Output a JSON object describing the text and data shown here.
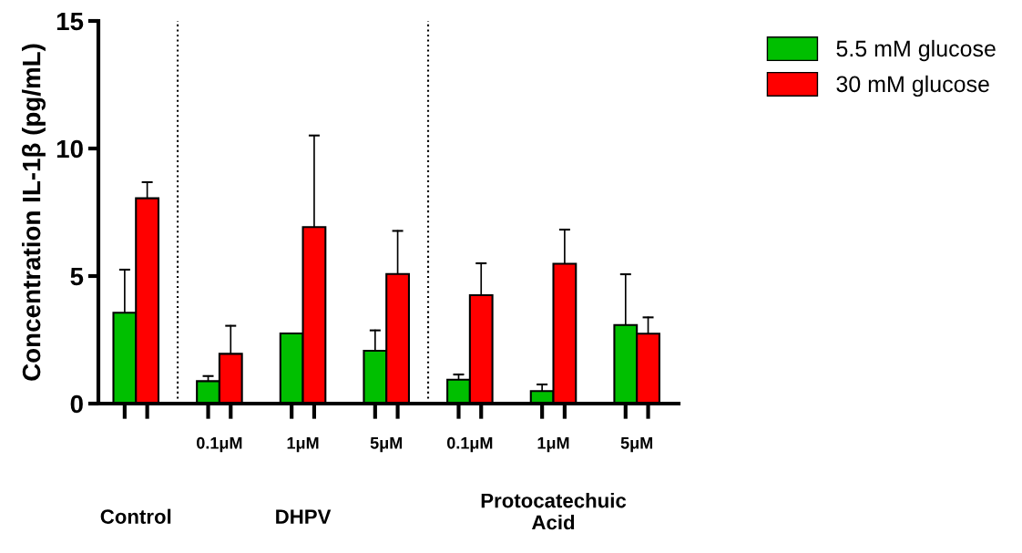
{
  "chart_data": {
    "type": "bar",
    "ylabel": "Concentration IL-1β (pg/mL)",
    "categories": [
      null,
      "0.1μM",
      "1μM",
      "5μM",
      "0.1μM",
      "1μM",
      "5μM"
    ],
    "series": [
      {
        "name": "5.5 mM glucose",
        "color": "#00bf00",
        "values": [
          3.56,
          0.88,
          2.75,
          2.07,
          0.94,
          0.49,
          3.08
        ],
        "errors": [
          [
            3.56,
            5.25
          ],
          [
            0.88,
            1.08
          ],
          null,
          [
            2.07,
            2.87
          ],
          [
            0.94,
            1.14
          ],
          [
            0.49,
            0.75
          ],
          [
            3.08,
            5.07
          ]
        ]
      },
      {
        "name": "30 mM glucose",
        "color": "#ff0000",
        "values": [
          8.05,
          1.95,
          6.92,
          5.08,
          4.25,
          5.48,
          2.74
        ],
        "errors": [
          [
            8.05,
            8.68
          ],
          [
            1.95,
            3.05
          ],
          [
            6.92,
            10.51
          ],
          [
            5.08,
            6.77
          ],
          [
            4.25,
            5.5
          ],
          [
            5.48,
            6.82
          ],
          [
            2.74,
            3.38
          ]
        ]
      }
    ],
    "ylim": [
      0,
      15
    ],
    "yticks": [
      0,
      5,
      10,
      15
    ],
    "annotations": [
      "Control",
      "DHPV",
      "Protocatechuic Acid"
    ],
    "legend": "top right",
    "grid": false
  }
}
